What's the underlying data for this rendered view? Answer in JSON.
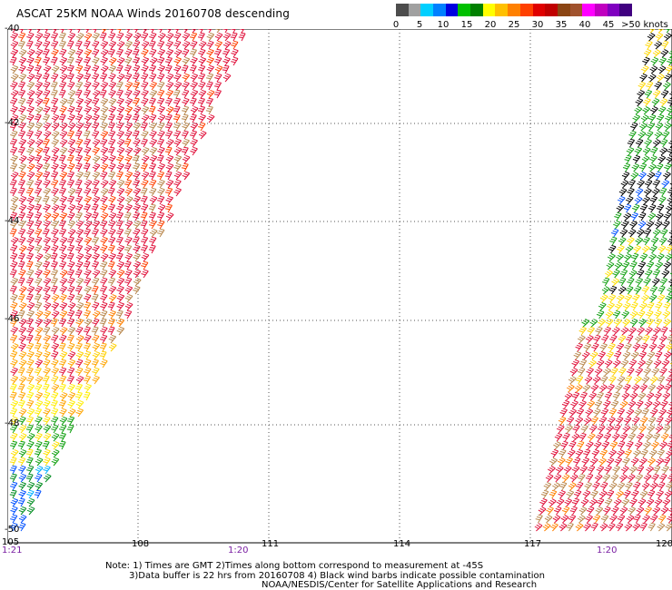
{
  "title": "ASCAT 25KM NOAA Winds 20160708 descending",
  "legend": {
    "colors": [
      "#4d4d4d",
      "#a0a0a0",
      "#00cfff",
      "#0080ff",
      "#0000e0",
      "#00c000",
      "#008000",
      "#ffff00",
      "#ffc000",
      "#ff8000",
      "#ff4000",
      "#e00000",
      "#c00000",
      "#8b4513",
      "#a0522d",
      "#ff00ff",
      "#c000c0",
      "#8000c0",
      "#400080"
    ],
    "labels": [
      "0",
      "5",
      "10",
      "15",
      "20",
      "25",
      "30",
      "35",
      "40",
      "45",
      ">50 knots"
    ]
  },
  "map": {
    "lon_labels": [
      "105",
      "108",
      "111",
      "114",
      "117",
      "120"
    ],
    "lat_labels": [
      "-40",
      "-42",
      "-44",
      "-46",
      "-48",
      "-50"
    ],
    "time_labels": [
      "1:21",
      "1:20",
      "1:20"
    ]
  },
  "notes": {
    "line1": "Note: 1) Times are GMT 2)Times along bottom correspond to measurement at -45S",
    "line2": "3)Data buffer is 22 hrs from 20160708 4) Black wind barbs indicate possible contamination",
    "line3": "NOAA/NESDIS/Center for Satellite Applications and Research"
  }
}
